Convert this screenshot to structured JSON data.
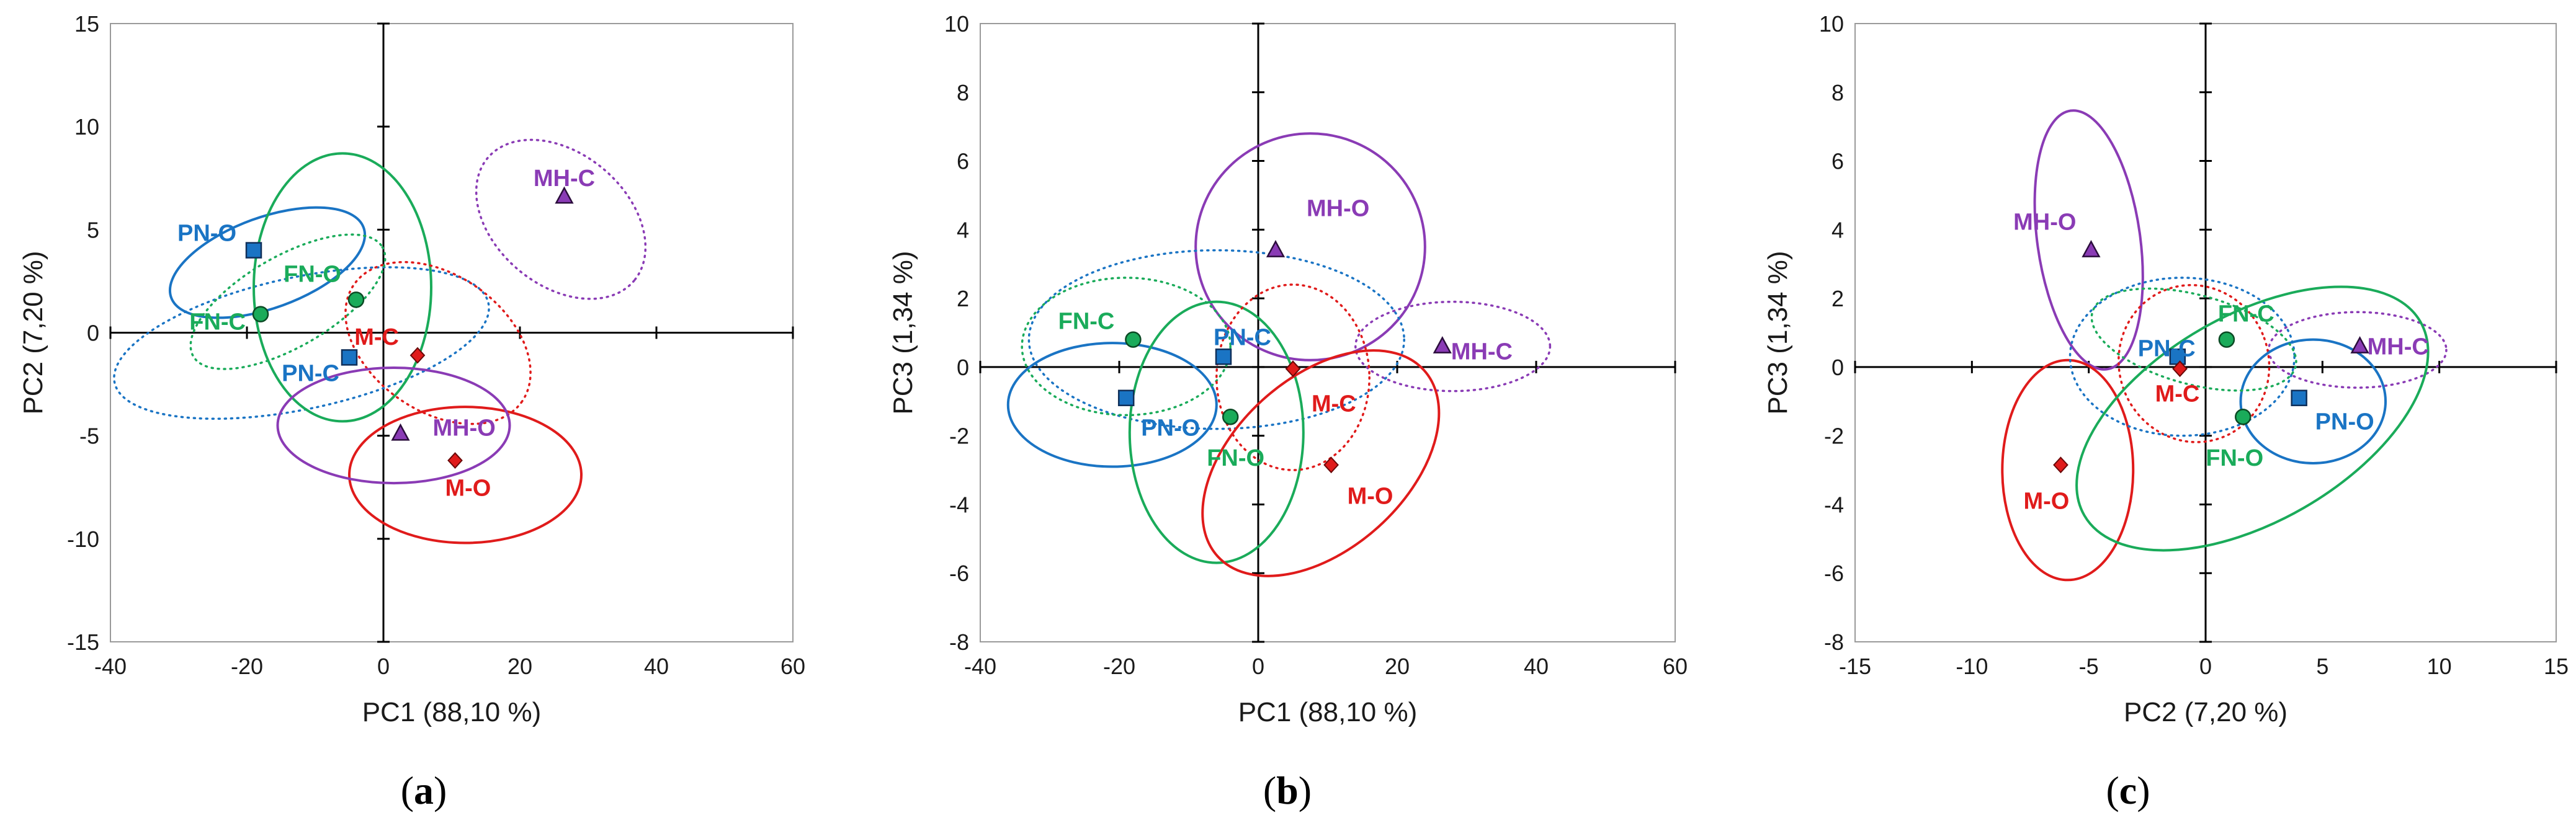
{
  "colors": {
    "PN": "#1a74c4",
    "FN": "#1aab5a",
    "M": "#e01b1b",
    "MH": "#8a3bb5",
    "axis": "#000000",
    "frame": "#9a9a9a"
  },
  "chart_data": [
    {
      "type": "scatter",
      "panel_label": "a",
      "xlabel": "PC1 (88,10 %)",
      "ylabel": "PC2 (7,20 %)",
      "xlim": [
        -40,
        60
      ],
      "ylim": [
        -15,
        15
      ],
      "xticks": [
        -40,
        -20,
        0,
        20,
        40,
        60
      ],
      "yticks": [
        -15,
        -10,
        -5,
        0,
        5,
        10,
        15
      ],
      "points": [
        {
          "label": "PN-O",
          "group": "PN",
          "marker": "square",
          "x": -19,
          "y": 4.0
        },
        {
          "label": "PN-C",
          "group": "PN",
          "marker": "square",
          "x": -5,
          "y": -1.2
        },
        {
          "label": "FN-O",
          "group": "FN",
          "marker": "circle",
          "x": -4,
          "y": 1.6
        },
        {
          "label": "FN-C",
          "group": "FN",
          "marker": "circle",
          "x": -18,
          "y": 0.9
        },
        {
          "label": "M-C",
          "group": "M",
          "marker": "diamond",
          "x": 5,
          "y": -1.1
        },
        {
          "label": "M-O",
          "group": "M",
          "marker": "diamond",
          "x": 10.5,
          "y": -6.2
        },
        {
          "label": "MH-C",
          "group": "MH",
          "marker": "triangle",
          "x": 26.5,
          "y": 6.6
        },
        {
          "label": "MH-O",
          "group": "MH",
          "marker": "triangle",
          "x": 2.5,
          "y": -4.9
        }
      ],
      "ellipses": [
        {
          "group": "PN",
          "style": "solid",
          "cx": -17,
          "cy": 3.4,
          "rx": 15,
          "ry": 2.2,
          "angle": -20
        },
        {
          "group": "PN",
          "style": "dotted",
          "cx": -12,
          "cy": -0.5,
          "rx": 28,
          "ry": 3.2,
          "angle": -12
        },
        {
          "group": "FN",
          "style": "solid",
          "cx": -6,
          "cy": 2.2,
          "rx": 13,
          "ry": 6.5,
          "angle": 0
        },
        {
          "group": "FN",
          "style": "dotted",
          "cx": -14,
          "cy": 1.5,
          "rx": 16,
          "ry": 2.2,
          "angle": -30
        },
        {
          "group": "M",
          "style": "solid",
          "cx": 12,
          "cy": -6.9,
          "rx": 17,
          "ry": 3.3,
          "angle": 0
        },
        {
          "group": "M",
          "style": "dotted",
          "cx": 8,
          "cy": -0.5,
          "rx": 15,
          "ry": 3.3,
          "angle": 35
        },
        {
          "group": "MH",
          "style": "solid",
          "cx": 1.5,
          "cy": -4.5,
          "rx": 17,
          "ry": 2.8,
          "angle": 0
        },
        {
          "group": "MH",
          "style": "dotted",
          "cx": 26,
          "cy": 5.5,
          "rx": 14,
          "ry": 3.2,
          "angle": 40
        }
      ]
    },
    {
      "type": "scatter",
      "panel_label": "b",
      "xlabel": "PC1 (88,10 %)",
      "ylabel": "PC3 (1,34 %)",
      "xlim": [
        -40,
        60
      ],
      "ylim": [
        -8,
        10
      ],
      "xticks": [
        -40,
        -20,
        0,
        20,
        40,
        60
      ],
      "yticks": [
        -8,
        -6,
        -4,
        -2,
        0,
        2,
        4,
        6,
        8,
        10
      ],
      "points": [
        {
          "label": "MH-O",
          "group": "MH",
          "marker": "triangle",
          "x": 2.5,
          "y": 3.4
        },
        {
          "label": "MH-C",
          "group": "MH",
          "marker": "triangle",
          "x": 26.5,
          "y": 0.6
        },
        {
          "label": "FN-C",
          "group": "FN",
          "marker": "circle",
          "x": -18,
          "y": 0.8
        },
        {
          "label": "PN-C",
          "group": "PN",
          "marker": "square",
          "x": -5,
          "y": 0.3
        },
        {
          "label": "PN-O",
          "group": "PN",
          "marker": "square",
          "x": -19,
          "y": -0.9
        },
        {
          "label": "FN-O",
          "group": "FN",
          "marker": "circle",
          "x": -4,
          "y": -1.45
        },
        {
          "label": "M-C",
          "group": "M",
          "marker": "diamond",
          "x": 5,
          "y": -0.05
        },
        {
          "label": "M-O",
          "group": "M",
          "marker": "diamond",
          "x": 10.5,
          "y": -2.85
        }
      ],
      "ellipses": [
        {
          "group": "MH",
          "style": "solid",
          "cx": 7.5,
          "cy": 3.5,
          "rx": 16.5,
          "ry": 3.3,
          "angle": 0
        },
        {
          "group": "MH",
          "style": "dotted",
          "cx": 28,
          "cy": 0.6,
          "rx": 14,
          "ry": 1.3,
          "angle": 0
        },
        {
          "group": "PN",
          "style": "solid",
          "cx": -21,
          "cy": -1.1,
          "rx": 15,
          "ry": 1.8,
          "angle": 0
        },
        {
          "group": "PN",
          "style": "dotted",
          "cx": -6,
          "cy": 0.8,
          "rx": 27,
          "ry": 2.6,
          "angle": 0
        },
        {
          "group": "FN",
          "style": "solid",
          "cx": -6,
          "cy": -1.9,
          "rx": 12.5,
          "ry": 3.8,
          "angle": 0
        },
        {
          "group": "FN",
          "style": "dotted",
          "cx": -19,
          "cy": 0.6,
          "rx": 15,
          "ry": 2.0,
          "angle": 0
        },
        {
          "group": "M",
          "style": "solid",
          "cx": 9,
          "cy": -2.8,
          "rx": 20,
          "ry": 2.5,
          "angle": -42
        },
        {
          "group": "M",
          "style": "dotted",
          "cx": 5,
          "cy": -0.3,
          "rx": 11,
          "ry": 2.7,
          "angle": 0
        }
      ]
    },
    {
      "type": "scatter",
      "panel_label": "c",
      "xlabel": "PC2 (7,20 %)",
      "ylabel": "PC3 (1,34 %)",
      "xlim": [
        -15,
        15
      ],
      "ylim": [
        -8,
        10
      ],
      "xticks": [
        -15,
        -10,
        -5,
        0,
        5,
        10,
        15
      ],
      "yticks": [
        -8,
        -6,
        -4,
        -2,
        0,
        2,
        4,
        6,
        8,
        10
      ],
      "points": [
        {
          "label": "MH-O",
          "group": "MH",
          "marker": "triangle",
          "x": -4.9,
          "y": 3.4
        },
        {
          "label": "FN-C",
          "group": "FN",
          "marker": "circle",
          "x": 0.9,
          "y": 0.8
        },
        {
          "label": "MH-C",
          "group": "MH",
          "marker": "triangle",
          "x": 6.6,
          "y": 0.6
        },
        {
          "label": "PN-C",
          "group": "PN",
          "marker": "square",
          "x": -1.2,
          "y": 0.3
        },
        {
          "label": "M-C",
          "group": "M",
          "marker": "diamond",
          "x": -1.1,
          "y": -0.05
        },
        {
          "label": "PN-O",
          "group": "PN",
          "marker": "square",
          "x": 4.0,
          "y": -0.9
        },
        {
          "label": "FN-O",
          "group": "FN",
          "marker": "circle",
          "x": 1.6,
          "y": -1.45
        },
        {
          "label": "M-O",
          "group": "M",
          "marker": "diamond",
          "x": -6.2,
          "y": -2.85
        }
      ],
      "ellipses": [
        {
          "group": "MH",
          "style": "solid",
          "cx": -5.0,
          "cy": 3.7,
          "rx": 2.2,
          "ry": 3.8,
          "angle": -8
        },
        {
          "group": "MH",
          "style": "dotted",
          "cx": 6.5,
          "cy": 0.5,
          "rx": 3.8,
          "ry": 1.1,
          "angle": 0
        },
        {
          "group": "M",
          "style": "solid",
          "cx": -5.9,
          "cy": -3.0,
          "rx": 2.8,
          "ry": 3.2,
          "angle": 0
        },
        {
          "group": "M",
          "style": "dotted",
          "cx": -0.5,
          "cy": 0.1,
          "rx": 3.2,
          "ry": 2.3,
          "angle": -20
        },
        {
          "group": "PN",
          "style": "solid",
          "cx": 4.6,
          "cy": -1.0,
          "rx": 3.1,
          "ry": 1.8,
          "angle": 0
        },
        {
          "group": "PN",
          "style": "dotted",
          "cx": -1.0,
          "cy": 0.3,
          "rx": 4.8,
          "ry": 2.3,
          "angle": 0
        },
        {
          "group": "FN",
          "style": "solid",
          "cx": 2.0,
          "cy": -1.5,
          "rx": 8.3,
          "ry": 3.0,
          "angle": -30
        },
        {
          "group": "FN",
          "style": "dotted",
          "cx": -0.5,
          "cy": 0.8,
          "rx": 4.5,
          "ry": 1.3,
          "angle": 15
        }
      ]
    }
  ]
}
